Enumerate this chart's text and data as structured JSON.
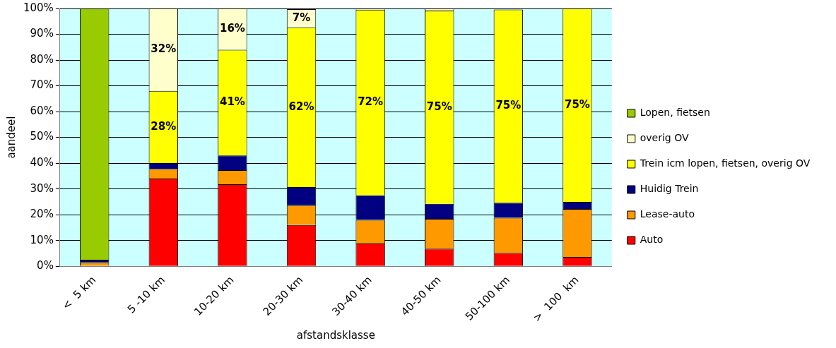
{
  "chart_data": {
    "type": "bar",
    "stacked": true,
    "xlabel": "afstandsklasse",
    "ylabel": "aandeel",
    "categories": [
      "<  5 km",
      "5 -10 km",
      "10-20 km",
      "20-30 km",
      "30-40 km",
      "40-50 km",
      "50-100 km",
      ">  100  km"
    ],
    "ylim": [
      0,
      100
    ],
    "yticks": [
      {
        "value": 0,
        "label": "0%"
      },
      {
        "value": 10,
        "label": "10%"
      },
      {
        "value": 20,
        "label": "20%"
      },
      {
        "value": 30,
        "label": "30%"
      },
      {
        "value": 40,
        "label": "40%"
      },
      {
        "value": 50,
        "label": "50%"
      },
      {
        "value": 60,
        "label": "60%"
      },
      {
        "value": 70,
        "label": "70%"
      },
      {
        "value": 80,
        "label": "80%"
      },
      {
        "value": 90,
        "label": "90%"
      },
      {
        "value": 100,
        "label": "100%"
      }
    ],
    "grid": "y",
    "legend": "right",
    "series": [
      {
        "name": "Auto",
        "color": "#ff0000",
        "values": [
          0,
          34,
          31.8,
          16,
          8.8,
          6.8,
          5.2,
          3.6
        ]
      },
      {
        "name": "Lease-auto",
        "color": "#ff9900",
        "values": [
          1.5,
          3.8,
          5.5,
          7.7,
          9.2,
          11.6,
          13.6,
          18.6
        ]
      },
      {
        "name": "Huidig Trein",
        "color": "#000080",
        "values": [
          1,
          2.2,
          5.7,
          7,
          9.5,
          5.8,
          5.8,
          2.8
        ]
      },
      {
        "name": "Trein icm lopen, fietsen, overig OV",
        "color": "#ffff00",
        "values": [
          0,
          28,
          41,
          62,
          72,
          75,
          75,
          75
        ],
        "value_labels": [
          null,
          "28%",
          "41%",
          "62%",
          "72%",
          "75%",
          "75%",
          "75%"
        ]
      },
      {
        "name": "overig OV",
        "color": "#ffffcc",
        "values": [
          0,
          32,
          16,
          7,
          0.5,
          0.8,
          null,
          0
        ],
        "value_labels": [
          null,
          "32%",
          "16%",
          "7%",
          null,
          null,
          null,
          null
        ]
      },
      {
        "name": "Lopen, fietsen",
        "color": "#99cc00",
        "values": [
          97.5,
          0,
          0,
          0,
          0,
          0,
          0,
          0
        ]
      }
    ]
  }
}
